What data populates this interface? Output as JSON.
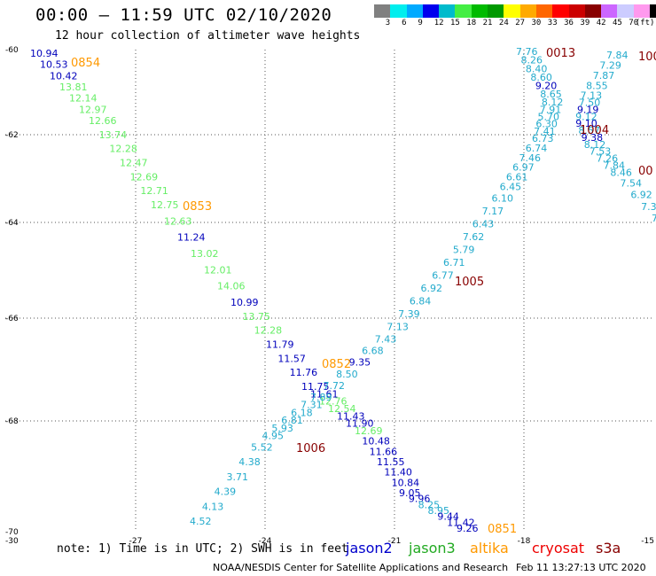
{
  "title": "00:00 – 11:59 UTC 02/10/2020",
  "subtitle": "12 hour collection of altimeter wave heights",
  "legend": {
    "unit": "(ft)",
    "colors": [
      "#808080",
      "#00eeee",
      "#00aaff",
      "#0000ee",
      "#00bbcc",
      "#44ee44",
      "#00bb00",
      "#009900",
      "#ffff00",
      "#ffaa00",
      "#ff6600",
      "#ff0000",
      "#cc0000",
      "#880000",
      "#cc66ff",
      "#ccccff",
      "#ff99ee",
      "#000000"
    ],
    "labels": [
      "3",
      "6",
      "9",
      "12",
      "15",
      "18",
      "21",
      "24",
      "27",
      "30",
      "33",
      "36",
      "39",
      "42",
      "45",
      "70"
    ]
  },
  "axes": {
    "y_labels": [
      "-60",
      "-62",
      "-64",
      "-66",
      "-68",
      "-70"
    ],
    "x_labels": [
      "-30",
      "-27",
      "-24",
      "-21",
      "-18",
      "-15"
    ]
  },
  "satellites": {
    "jason2": {
      "label": "jason2",
      "color": "#0000cc"
    },
    "jason3": {
      "label": "jason3",
      "color": "#22aa22"
    },
    "altika": {
      "label": "altika",
      "color": "#ff9900"
    },
    "cryosat": {
      "label": "cryosat",
      "color": "#ee0000"
    },
    "s3a": {
      "label": "s3a",
      "color": "#880000"
    }
  },
  "colors": {
    "light": "#66ee66",
    "cyan": "#22aacc",
    "dark": "#0000bb",
    "orange": "#ff9900",
    "maroon": "#880000"
  },
  "note": "note: 1) Time is in UTC; 2) SWH is in feet",
  "credit_left": "NOAA/NESDIS Center for Satellite Applications and Research",
  "credit_right": "Feb 11 13:27:13 UTC 2020",
  "map_data": {
    "type": "scatter-labels",
    "track1": [
      [
        "10.94",
        "dark"
      ],
      [
        "10.53",
        "dark"
      ],
      [
        "10.42",
        "dark"
      ],
      [
        "13.81",
        "light"
      ],
      [
        "12.14",
        "light"
      ],
      [
        "12.97",
        "light"
      ],
      [
        "12.66",
        "light"
      ],
      [
        "13.74",
        "light"
      ],
      [
        "12.28",
        "light"
      ],
      [
        "12.47",
        "light"
      ],
      [
        "12.69",
        "light"
      ],
      [
        "12.71",
        "light"
      ],
      [
        "12.75",
        "light"
      ],
      [
        "12.63",
        "light"
      ],
      [
        "11.24",
        "dark"
      ],
      [
        "13.02",
        "light"
      ],
      [
        "12.01",
        "light"
      ],
      [
        "14.06",
        "light"
      ],
      [
        "10.99",
        "dark"
      ],
      [
        "13.75",
        "light"
      ],
      [
        "12.28",
        "light"
      ],
      [
        "11.79",
        "dark"
      ],
      [
        "11.57",
        "dark"
      ],
      [
        "11.76",
        "dark"
      ],
      [
        "11.75",
        "dark"
      ],
      [
        "11.61",
        "dark"
      ],
      [
        "12.76",
        "light"
      ],
      [
        "12.54",
        "light"
      ],
      [
        "11.43",
        "dark"
      ],
      [
        "11.90",
        "dark"
      ],
      [
        "12.69",
        "light"
      ],
      [
        "10.48",
        "dark"
      ],
      [
        "11.66",
        "dark"
      ],
      [
        "11.55",
        "dark"
      ],
      [
        "11.40",
        "dark"
      ],
      [
        "10.84",
        "dark"
      ],
      [
        "9.05",
        "dark"
      ],
      [
        "9.96",
        "dark"
      ],
      [
        "8.25",
        "cyan"
      ],
      [
        "8.95",
        "cyan"
      ],
      [
        "9.44",
        "dark"
      ],
      [
        "11.42",
        "dark"
      ],
      [
        "9.26",
        "dark"
      ]
    ],
    "track2": [
      [
        "4.52",
        "cyan"
      ],
      [
        "4.13",
        "cyan"
      ],
      [
        "4.39",
        "cyan"
      ],
      [
        "3.71",
        "cyan"
      ],
      [
        "4.38",
        "cyan"
      ],
      [
        "5.52",
        "cyan"
      ],
      [
        "4.95",
        "cyan"
      ],
      [
        "5.93",
        "cyan"
      ],
      [
        "6.81",
        "cyan"
      ],
      [
        "6.18",
        "cyan"
      ],
      [
        "7.31",
        "cyan"
      ],
      [
        "7.89",
        "cyan"
      ],
      [
        "7.72",
        "cyan"
      ],
      [
        "8.50",
        "cyan"
      ],
      [
        "9.35",
        "dark"
      ],
      [
        "6.68",
        "cyan"
      ],
      [
        "7.43",
        "cyan"
      ],
      [
        "7.13",
        "cyan"
      ],
      [
        "7.39",
        "cyan"
      ],
      [
        "6.84",
        "cyan"
      ],
      [
        "6.92",
        "cyan"
      ],
      [
        "6.77",
        "cyan"
      ],
      [
        "6.71",
        "cyan"
      ],
      [
        "5.79",
        "cyan"
      ],
      [
        "7.62",
        "cyan"
      ],
      [
        "6.43",
        "cyan"
      ],
      [
        "7.17",
        "cyan"
      ],
      [
        "6.10",
        "cyan"
      ],
      [
        "6.45",
        "cyan"
      ],
      [
        "6.61",
        "cyan"
      ],
      [
        "6.97",
        "cyan"
      ],
      [
        "7.46",
        "cyan"
      ],
      [
        "6.74",
        "cyan"
      ],
      [
        "6.73",
        "cyan"
      ],
      [
        "7.41",
        "cyan"
      ],
      [
        "6.30",
        "cyan"
      ],
      [
        "5.70",
        "cyan"
      ],
      [
        "7.91",
        "cyan"
      ],
      [
        "8.12",
        "cyan"
      ],
      [
        "8.65",
        "cyan"
      ],
      [
        "9.20",
        "dark"
      ],
      [
        "8.60",
        "cyan"
      ],
      [
        "8.40",
        "cyan"
      ],
      [
        "8.26",
        "cyan"
      ],
      [
        "7.76",
        "cyan"
      ]
    ],
    "track3": [
      [
        "7.84",
        "cyan"
      ],
      [
        "7.29",
        "cyan"
      ],
      [
        "7.87",
        "cyan"
      ],
      [
        "8.55",
        "cyan"
      ],
      [
        "7.13",
        "cyan"
      ],
      [
        "7.50",
        "cyan"
      ],
      [
        "9.19",
        "dark"
      ],
      [
        "9.12",
        "cyan"
      ],
      [
        "9.10",
        "dark"
      ],
      [
        "8.57",
        "cyan"
      ],
      [
        "9.38",
        "dark"
      ],
      [
        "8.12",
        "cyan"
      ],
      [
        "7.53",
        "cyan"
      ],
      [
        "7.26",
        "cyan"
      ],
      [
        "7.84",
        "cyan"
      ],
      [
        "8.46",
        "cyan"
      ],
      [
        "7.54",
        "cyan"
      ],
      [
        "6.92",
        "cyan"
      ],
      [
        "7.3",
        "cyan"
      ],
      [
        "7",
        "cyan"
      ]
    ],
    "time_tags": [
      {
        "t": "0854",
        "c": "orange"
      },
      {
        "t": "0853",
        "c": "orange"
      },
      {
        "t": "0852",
        "c": "orange"
      },
      {
        "t": "0851",
        "c": "orange"
      },
      {
        "t": "1006",
        "c": "maroon"
      },
      {
        "t": "1005",
        "c": "maroon"
      },
      {
        "t": "1004",
        "c": "maroon"
      },
      {
        "t": "0013",
        "c": "maroon"
      },
      {
        "t": "100",
        "c": "maroon"
      },
      {
        "t": "00",
        "c": "maroon"
      }
    ]
  }
}
